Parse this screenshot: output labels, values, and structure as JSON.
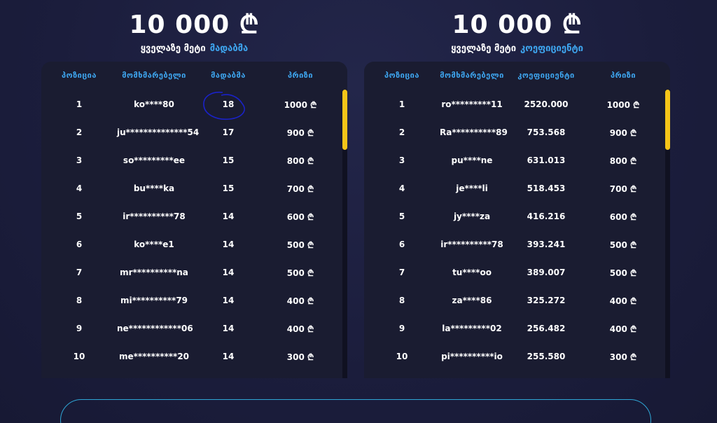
{
  "left_board": {
    "amount": "10 000 ₾",
    "subtitle_main": "ყველაზე მეტი",
    "subtitle_accent": "მადაბმა",
    "headers": [
      "პოზიცია",
      "მომხმარებელი",
      "მადაბმა",
      "პრიზი"
    ],
    "rows": [
      {
        "pos": "1",
        "user": "ko****80",
        "value": "18",
        "prize": "1000 ₾"
      },
      {
        "pos": "2",
        "user": "ju**************54",
        "value": "17",
        "prize": "900 ₾"
      },
      {
        "pos": "3",
        "user": "so*********ee",
        "value": "15",
        "prize": "800 ₾"
      },
      {
        "pos": "4",
        "user": "bu****ka",
        "value": "15",
        "prize": "700 ₾"
      },
      {
        "pos": "5",
        "user": "ir**********78",
        "value": "14",
        "prize": "600 ₾"
      },
      {
        "pos": "6",
        "user": "ko****e1",
        "value": "14",
        "prize": "500 ₾"
      },
      {
        "pos": "7",
        "user": "mr**********na",
        "value": "14",
        "prize": "500 ₾"
      },
      {
        "pos": "8",
        "user": "mi**********79",
        "value": "14",
        "prize": "400 ₾"
      },
      {
        "pos": "9",
        "user": "ne************06",
        "value": "14",
        "prize": "400 ₾"
      },
      {
        "pos": "10",
        "user": "me**********20",
        "value": "14",
        "prize": "300 ₾"
      }
    ]
  },
  "right_board": {
    "amount": "10 000 ₾",
    "subtitle_main": "ყველაზე მეტი",
    "subtitle_accent": "კოეფიციენტი",
    "headers": [
      "პოზიცია",
      "მომხმარებელი",
      "კოეფიციენტი",
      "პრიზი"
    ],
    "rows": [
      {
        "pos": "1",
        "user": "ro*********11",
        "value": "2520.000",
        "prize": "1000 ₾"
      },
      {
        "pos": "2",
        "user": "Ra**********89",
        "value": "753.568",
        "prize": "900 ₾"
      },
      {
        "pos": "3",
        "user": "pu****ne",
        "value": "631.013",
        "prize": "800 ₾"
      },
      {
        "pos": "4",
        "user": "je****li",
        "value": "518.453",
        "prize": "700 ₾"
      },
      {
        "pos": "5",
        "user": "jy****za",
        "value": "416.216",
        "prize": "600 ₾"
      },
      {
        "pos": "6",
        "user": "ir**********78",
        "value": "393.241",
        "prize": "500 ₾"
      },
      {
        "pos": "7",
        "user": "tu****oo",
        "value": "389.007",
        "prize": "500 ₾"
      },
      {
        "pos": "8",
        "user": "za****86",
        "value": "325.272",
        "prize": "400 ₾"
      },
      {
        "pos": "9",
        "user": "la*********02",
        "value": "256.482",
        "prize": "400 ₾"
      },
      {
        "pos": "10",
        "user": "pi**********io",
        "value": "255.580",
        "prize": "300 ₾"
      }
    ]
  },
  "colors": {
    "accent": "#3ea6f0",
    "scroll_thumb": "#f5c518",
    "annotation": "#1a22c8"
  }
}
